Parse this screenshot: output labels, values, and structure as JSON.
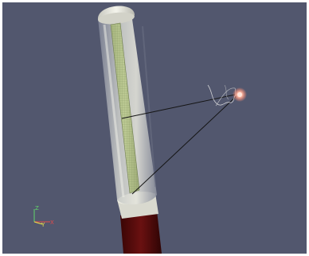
{
  "axes_triad": {
    "x_label": "X",
    "y_label": "Y",
    "z_label": "Z",
    "x_color": "#e34b4b",
    "y_color": "#f0e64a",
    "z_color": "#62d46a"
  },
  "scene_colors": {
    "background": "#52576e",
    "capsule_shell": "#dcdcd2",
    "detector_plate": "#b7c48f",
    "detector_grid": "#8fa06c",
    "rod": "#5b0d0d",
    "source_glow": "#ffb39a",
    "track_lines": "#111111"
  },
  "icons": [
    "axes-triad-icon",
    "radiation-source-icon"
  ]
}
